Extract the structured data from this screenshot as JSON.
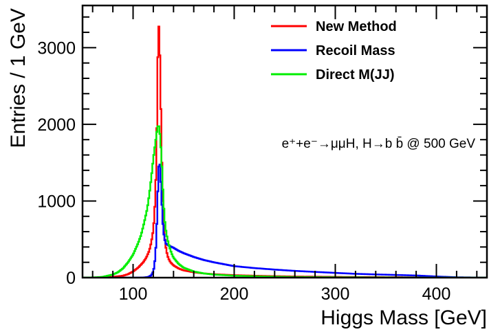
{
  "chart_data": {
    "type": "line",
    "style": "step-histogram",
    "xlabel": "Higgs Mass [GeV]",
    "ylabel": "Entries / 1 GeV",
    "xlim": [
      50,
      450
    ],
    "ylim": [
      0,
      3550
    ],
    "x_ticks": [
      100,
      200,
      300,
      400
    ],
    "y_ticks": [
      0,
      1000,
      2000,
      3000
    ],
    "grid": false,
    "legend_position": "top-right",
    "annotation": "e⁺+e⁻→μμH, H→b b̄ @ 500 GeV",
    "series": [
      {
        "name": "New Method",
        "color": "#ff0000",
        "x": [
          50,
          70,
          80,
          90,
          95,
          100,
          105,
          110,
          113,
          116,
          118,
          120,
          121,
          122,
          123,
          124,
          125,
          126,
          127,
          128,
          129,
          130,
          131,
          132,
          133,
          134,
          135,
          137,
          140,
          145,
          150,
          160,
          170,
          180,
          200,
          230,
          260,
          300,
          350,
          400,
          450
        ],
        "values": [
          0,
          3,
          10,
          25,
          45,
          80,
          130,
          200,
          260,
          350,
          460,
          620,
          800,
          1050,
          1500,
          2400,
          3350,
          3200,
          2600,
          1800,
          1200,
          800,
          560,
          430,
          350,
          290,
          250,
          200,
          160,
          120,
          95,
          70,
          55,
          45,
          32,
          22,
          15,
          10,
          6,
          3,
          0
        ]
      },
      {
        "name": "Recoil Mass",
        "color": "#0000ff",
        "x": [
          50,
          100,
          110,
          115,
          118,
          120,
          121,
          122,
          123,
          124,
          125,
          126,
          127,
          128,
          129,
          130,
          132,
          135,
          140,
          145,
          150,
          160,
          170,
          180,
          190,
          200,
          220,
          240,
          260,
          280,
          300,
          320,
          340,
          360,
          380,
          400,
          420,
          450
        ],
        "values": [
          0,
          0,
          2,
          8,
          30,
          80,
          150,
          280,
          500,
          900,
          1350,
          1550,
          1400,
          1100,
          800,
          600,
          450,
          420,
          390,
          350,
          320,
          270,
          230,
          200,
          175,
          150,
          125,
          105,
          88,
          75,
          62,
          50,
          42,
          35,
          28,
          15,
          5,
          0
        ]
      },
      {
        "name": "Direct M(JJ)",
        "color": "#00ee00",
        "x": [
          50,
          60,
          70,
          80,
          85,
          90,
          95,
          100,
          105,
          108,
          111,
          114,
          116,
          118,
          120,
          122,
          124,
          125,
          126,
          127,
          128,
          129,
          130,
          131,
          132,
          134,
          136,
          138,
          140,
          145,
          150,
          160,
          170,
          180,
          200,
          230,
          260,
          300,
          350,
          400,
          450
        ],
        "values": [
          0,
          3,
          10,
          40,
          70,
          120,
          200,
          300,
          450,
          560,
          720,
          900,
          1080,
          1300,
          1550,
          1750,
          1950,
          2000,
          1950,
          1800,
          1600,
          1300,
          1000,
          800,
          650,
          500,
          400,
          320,
          260,
          180,
          130,
          80,
          55,
          40,
          25,
          15,
          8,
          5,
          3,
          1,
          0
        ]
      }
    ]
  }
}
